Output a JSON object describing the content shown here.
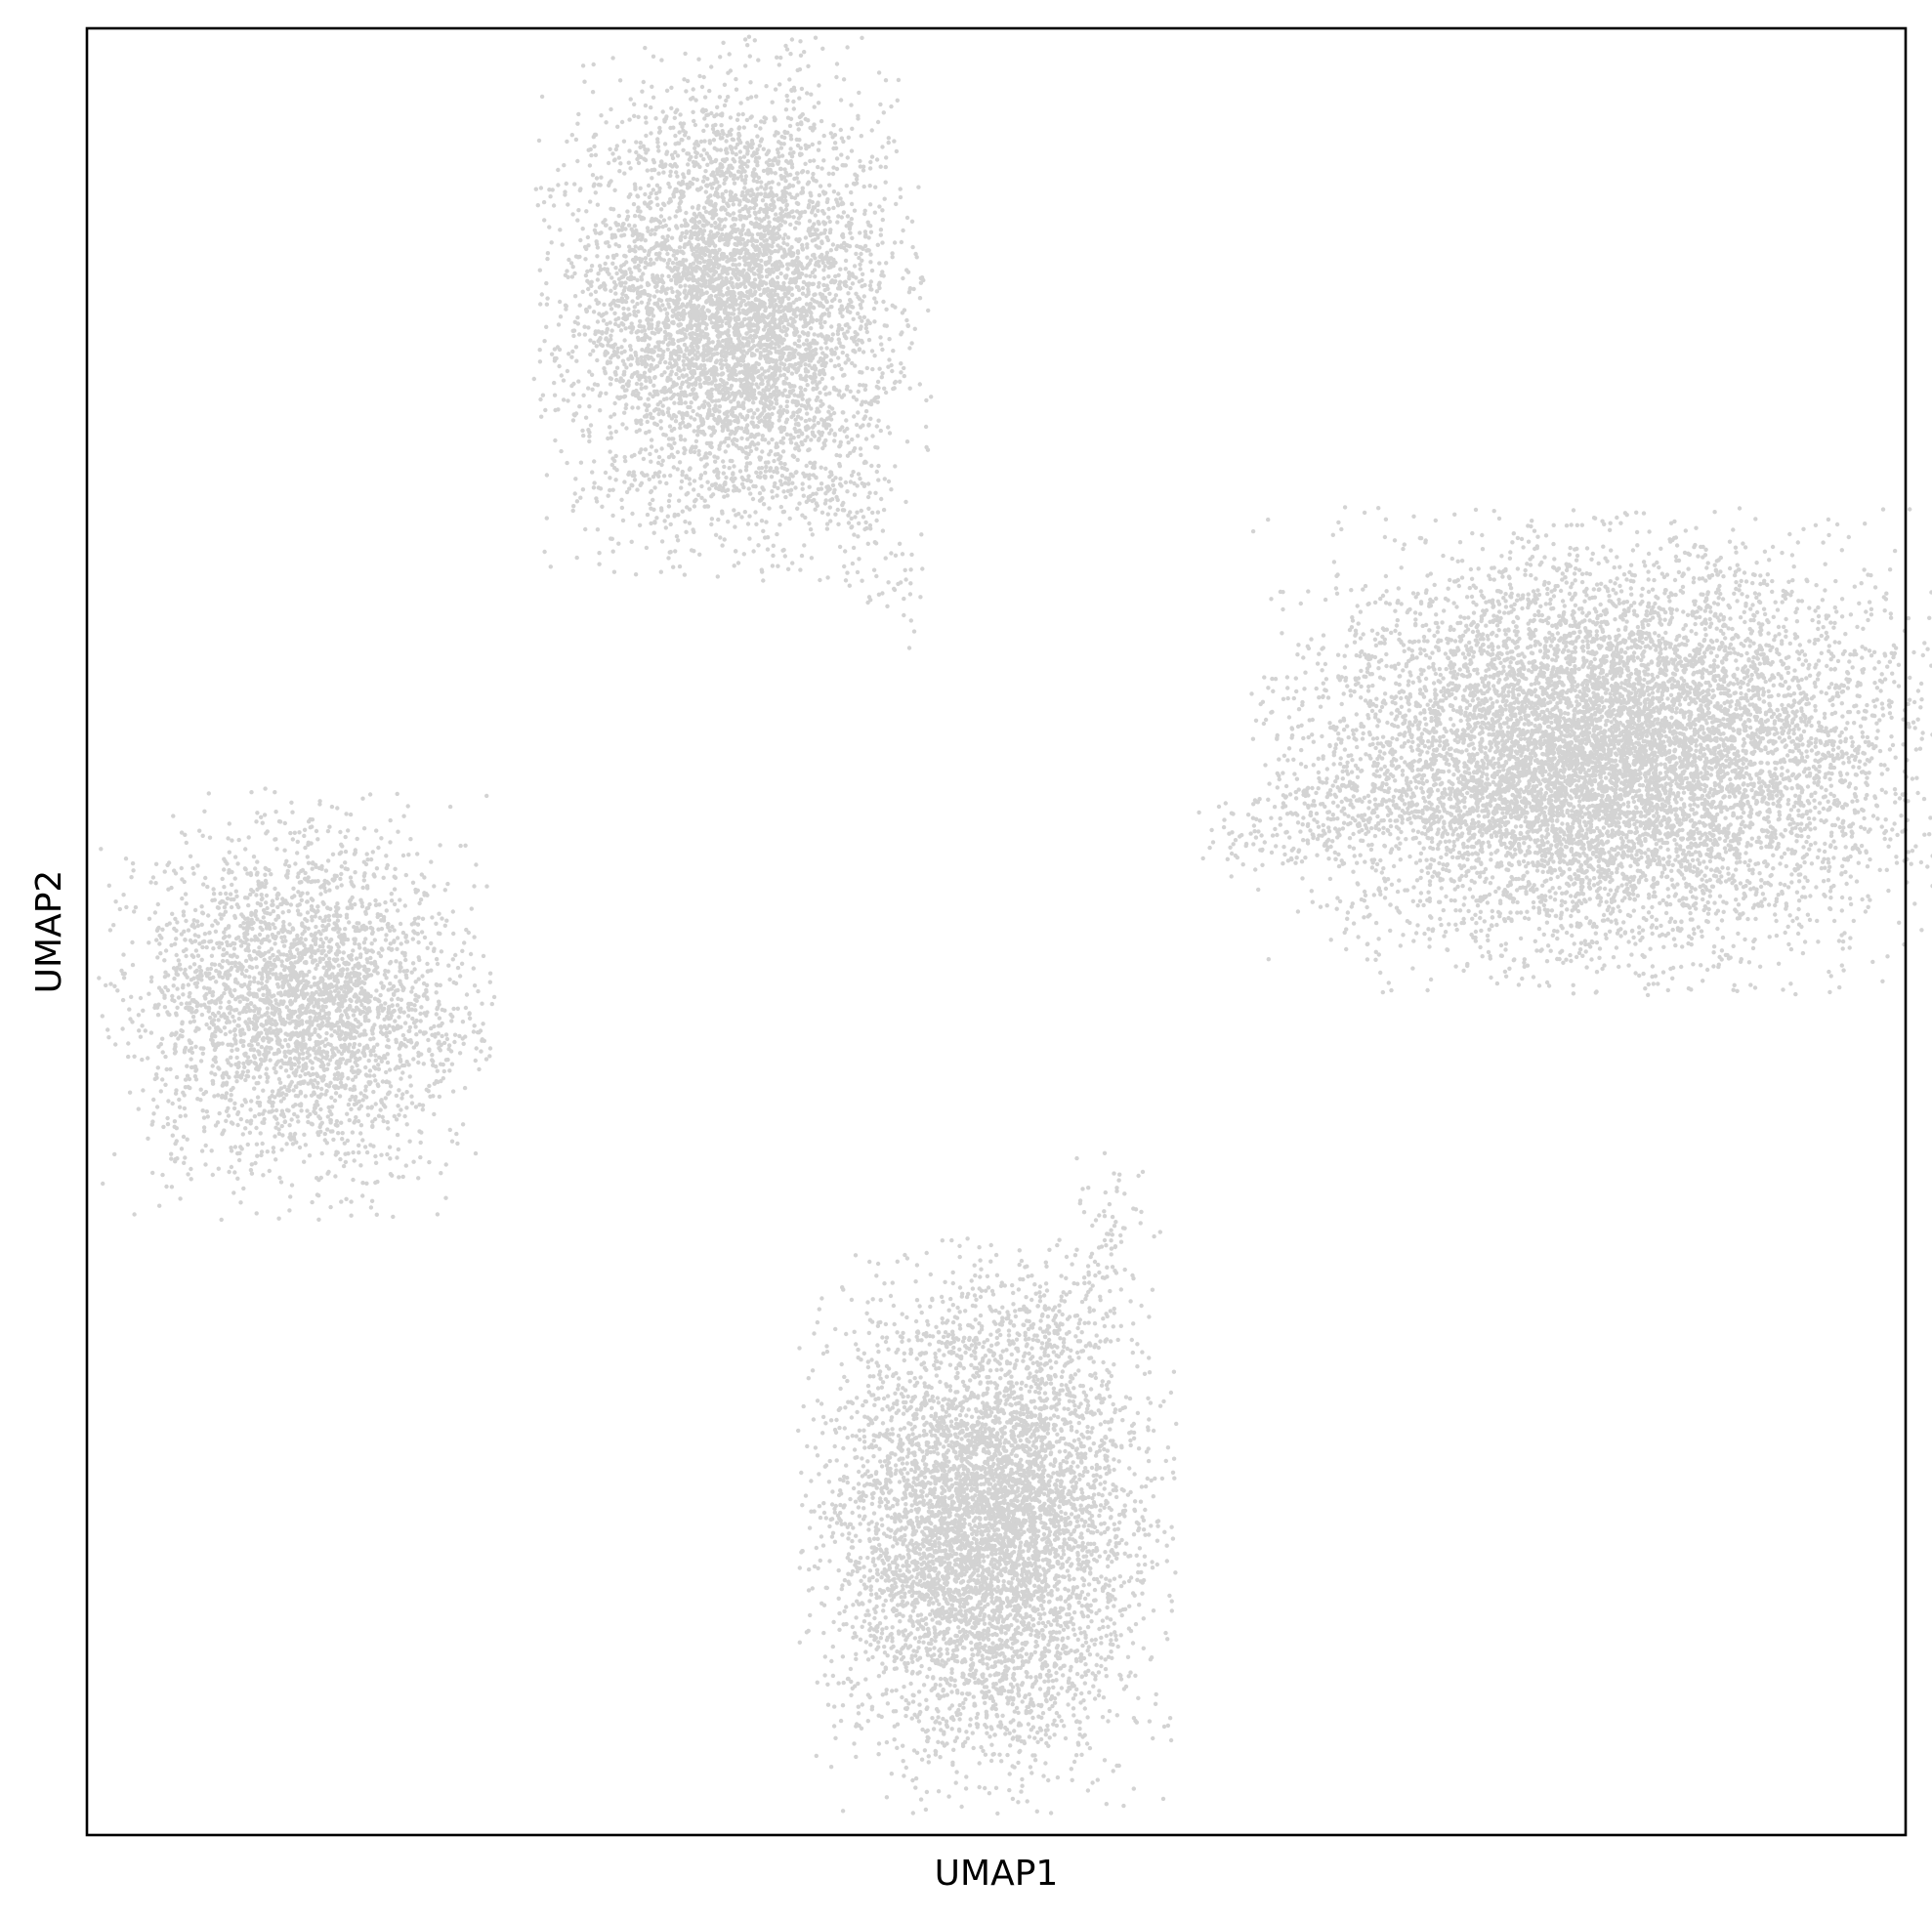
{
  "chart_data": {
    "type": "scatter",
    "title": "",
    "xlabel": "UMAP1",
    "ylabel": "UMAP2",
    "xticks": [],
    "yticks": [],
    "xlim": [
      0,
      100
    ],
    "ylim": [
      0,
      100
    ],
    "grid": false,
    "legend": "none",
    "point_color": "#d3d3d3",
    "series": [
      {
        "cluster": "upper-left",
        "approx_points": 5500,
        "center": [
          35.5,
          84.5
        ],
        "spread": [
          4.2,
          5.8
        ],
        "tail_toward": [
          45,
          68
        ]
      },
      {
        "cluster": "right",
        "approx_points": 9500,
        "center": [
          83.5,
          60.0
        ],
        "spread": [
          7.5,
          5.2
        ],
        "tail_toward": [
          63,
          55
        ]
      },
      {
        "cluster": "left",
        "approx_points": 3200,
        "center": [
          11.5,
          46.0
        ],
        "spread": [
          4.2,
          4.6
        ],
        "tail_toward": [
          22,
          44
        ]
      },
      {
        "cluster": "bottom",
        "approx_points": 6000,
        "center": [
          49.5,
          17.0
        ],
        "spread": [
          4.0,
          6.2
        ],
        "tail_toward": [
          57,
          36
        ]
      }
    ]
  }
}
